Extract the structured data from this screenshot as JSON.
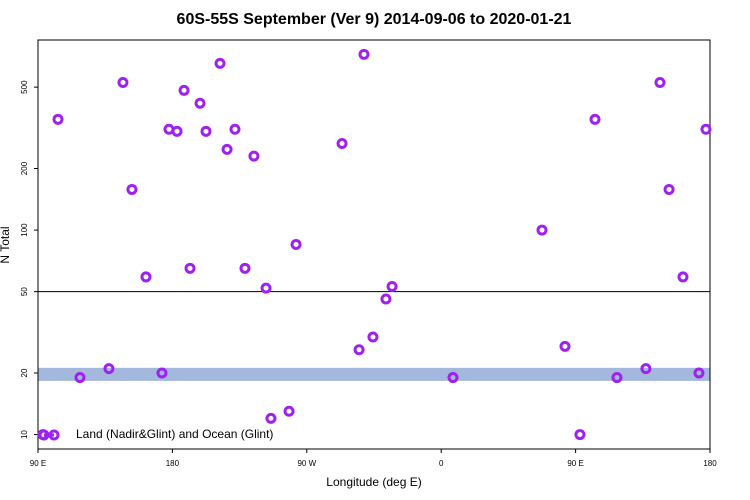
{
  "chart_data": {
    "type": "scatter",
    "title": "60S-55S September (Ver 9)   2014-09-06 to 2020-01-21",
    "x_label": "Longitude (deg E)",
    "y_label": "N Total",
    "log_y": true,
    "xlim": [
      90,
      540
    ],
    "ylim": [
      8.5,
      850
    ],
    "xticks": [
      {
        "value": 90,
        "label": "90 E"
      },
      180,
      {
        "value": 270,
        "label": "90 W"
      },
      {
        "value": 360,
        "label": "0"
      },
      {
        "value": 450,
        "label": "90 E"
      },
      {
        "value": 540,
        "label": "180"
      }
    ],
    "yticks": [
      10,
      20,
      50,
      100,
      200,
      500
    ],
    "reference_line": 50,
    "reference_band": [
      18.3,
      21.2
    ],
    "band_color": "#a3b8dc",
    "legend_position": "lower left",
    "series": [
      {
        "name": "Land (Nadir&Glint) and Ocean (Glint)",
        "color": "#a020f0",
        "x": [
          93.3,
          103.4,
          118.1,
          137.5,
          146.9,
          152.9,
          162.3,
          173.0,
          177.7,
          183.1,
          187.8,
          191.8,
          198.5,
          202.5,
          211.9,
          216.6,
          221.9,
          228.6,
          234.6,
          242.7,
          246.0,
          258.1,
          262.8,
          293.6,
          305.0,
          308.3,
          314.3,
          323.0,
          327.1,
          367.9,
          427.5,
          442.9,
          452.9,
          463.0,
          477.7,
          497.1,
          506.5,
          512.6,
          521.9,
          532.6,
          537.3
        ],
        "values": [
          10,
          348,
          19,
          21,
          527,
          158,
          59,
          20,
          311,
          304,
          482,
          65,
          417,
          304,
          653,
          248,
          311,
          65,
          230,
          52,
          12,
          13,
          85,
          265,
          26,
          723,
          30,
          46,
          53,
          19,
          100,
          27,
          10,
          348,
          19,
          21,
          527,
          158,
          59,
          20,
          311
        ]
      }
    ]
  }
}
